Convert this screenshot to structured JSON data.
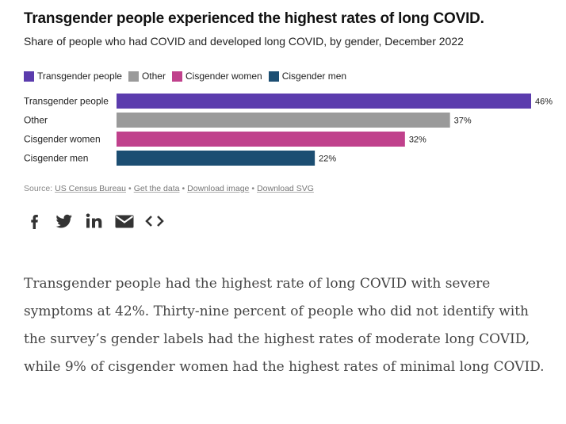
{
  "title": "Transgender people experienced the highest rates of long COVID.",
  "subtitle": "Share of people who had COVID and developed long COVID, by gender, December 2022",
  "colors": {
    "Transgender people": "#5b3cad",
    "Other": "#9a9a9a",
    "Cisgender women": "#c0418c",
    "Cisgender men": "#1c4e72"
  },
  "legend": [
    "Transgender people",
    "Other",
    "Cisgender women",
    "Cisgender men"
  ],
  "chart_data": {
    "type": "bar",
    "orientation": "horizontal",
    "title": "Transgender people experienced the highest rates of long COVID.",
    "subtitle": "Share of people who had COVID and developed long COVID, by gender, December 2022",
    "categories": [
      "Transgender people",
      "Other",
      "Cisgender women",
      "Cisgender men"
    ],
    "values": [
      46,
      37,
      32,
      22
    ],
    "value_labels": [
      "46%",
      "37%",
      "32%",
      "22%"
    ],
    "unit": "%",
    "xlim": [
      0,
      46
    ],
    "grid": false,
    "legend_position": "top-left"
  },
  "source": {
    "prefix": "Source: ",
    "source_link": "US Census Bureau",
    "links": [
      "Get the data",
      "Download image",
      "Download SVG"
    ],
    "separator": "•"
  },
  "share_icons": [
    "facebook-icon",
    "twitter-icon",
    "linkedin-icon",
    "email-icon",
    "embed-icon"
  ],
  "body_text": "Transgender people had the highest rate of long COVID with severe symptoms at 42%. Thirty-nine percent of people who did not identify with the survey’s gender labels had the highest rates of moderate long COVID, while 9% of cisgender women had the highest rates of minimal long COVID."
}
